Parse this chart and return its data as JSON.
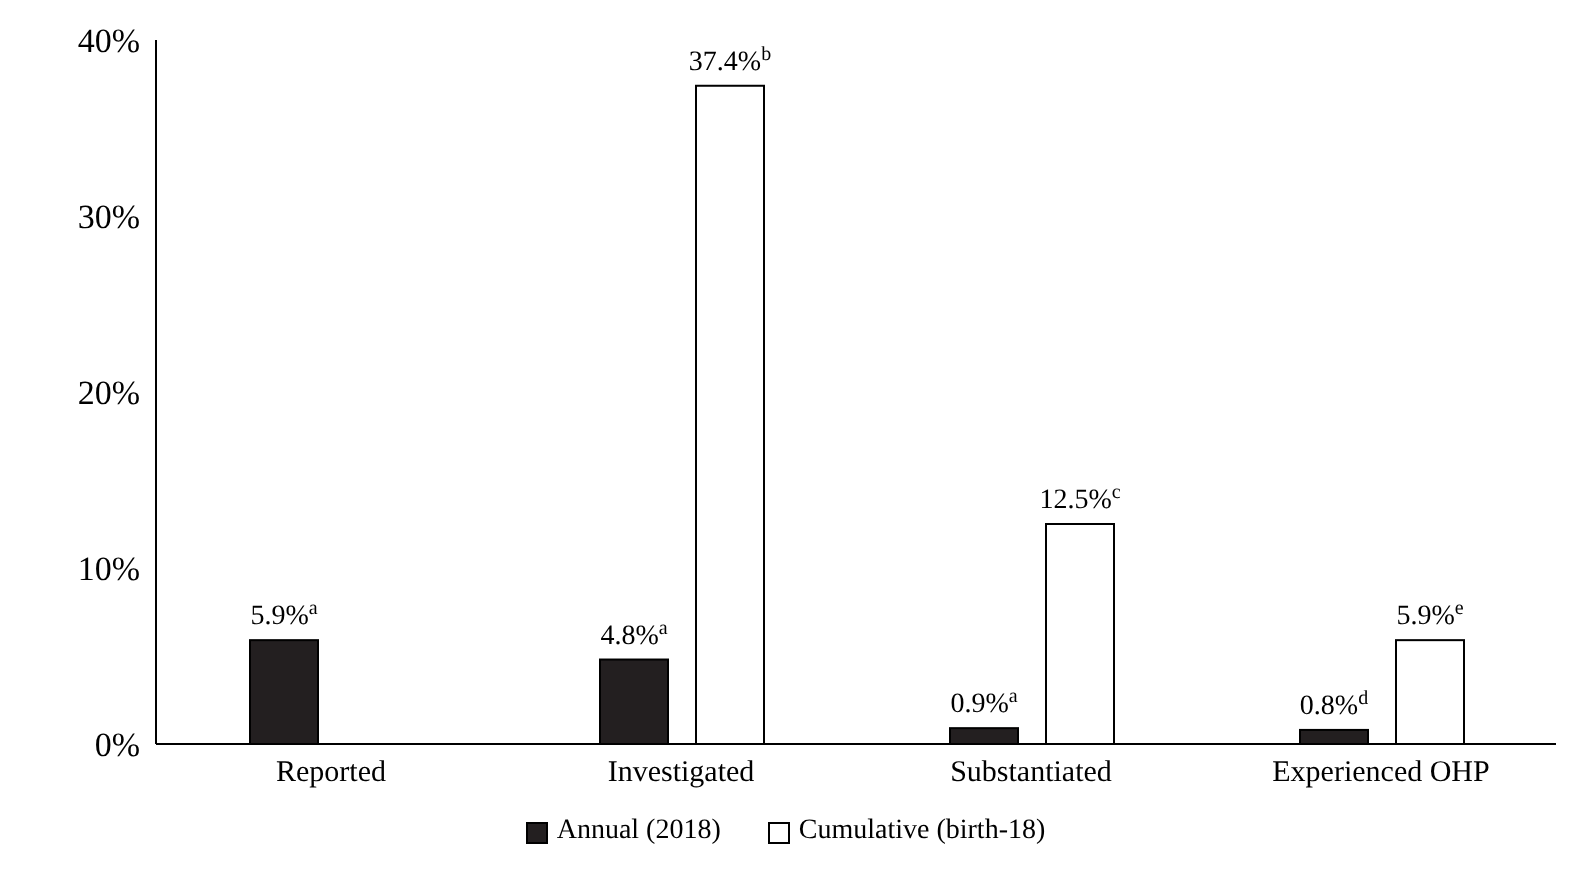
{
  "chart_data": {
    "type": "bar",
    "categories": [
      "Reported",
      "Investigated",
      "Substantiated",
      "Experienced OHP"
    ],
    "series": [
      {
        "name": "Annual (2018)",
        "color": "#231f20",
        "values": [
          5.9,
          4.8,
          0.9,
          0.8
        ],
        "value_labels": [
          "5.9%$^{a}$",
          "4.8%$^{a}$",
          "0.9%$^{a}$",
          "0.8%$^{d}$"
        ]
      },
      {
        "name": "Cumulative (birth-18)",
        "color": "#ffffff",
        "values": [
          null,
          37.4,
          12.5,
          5.9
        ],
        "value_labels": [
          null,
          "37.4%$^{b}$",
          "12.5%$^{c}$",
          "5.9%$^{e}$"
        ]
      }
    ],
    "ylim": [
      0,
      40
    ],
    "yticks": [
      {
        "value": 0,
        "label": "0%"
      },
      {
        "value": 10,
        "label": "10%"
      },
      {
        "value": 20,
        "label": "20%"
      },
      {
        "value": 30,
        "label": "30%"
      },
      {
        "value": 40,
        "label": "40%"
      }
    ],
    "grid": false,
    "legend": "bottom"
  }
}
